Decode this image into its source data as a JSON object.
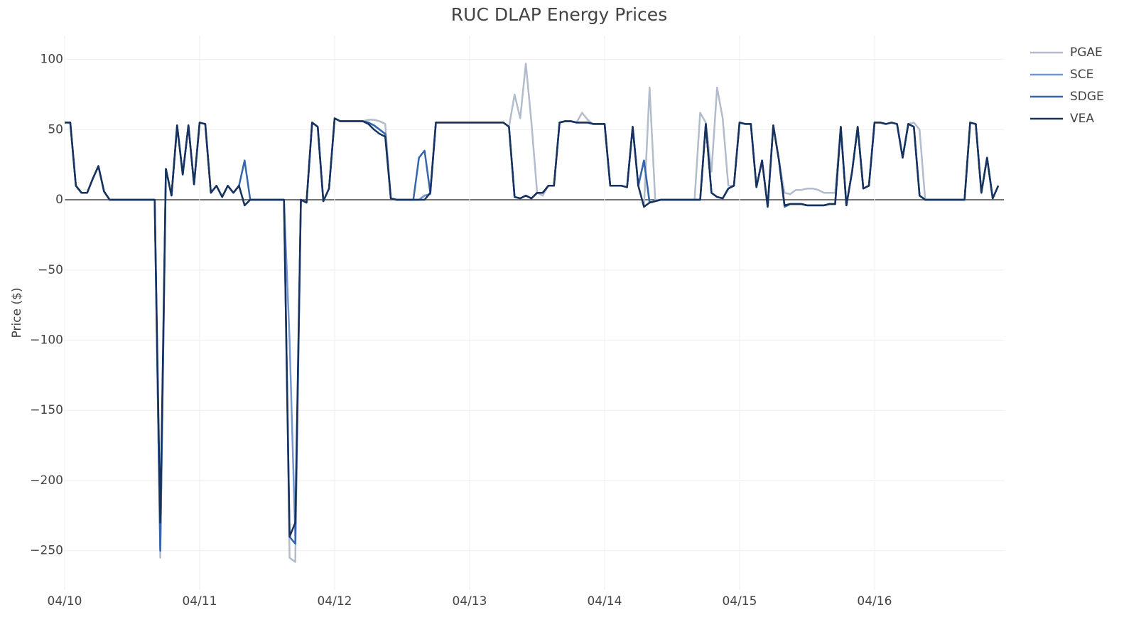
{
  "chart_data": {
    "type": "line",
    "title": "RUC DLAP Energy Prices",
    "ylabel": "Price ($)",
    "x": [
      0,
      1,
      2,
      3,
      4,
      5,
      6,
      7,
      8,
      9,
      10,
      11,
      12,
      13,
      14,
      15,
      16,
      17,
      18,
      19,
      20,
      21,
      22,
      23,
      24,
      25,
      26,
      27,
      28,
      29,
      30,
      31,
      32,
      33,
      34,
      35,
      36,
      37,
      38,
      39,
      40,
      41,
      42,
      43,
      44,
      45,
      46,
      47,
      48,
      49,
      50,
      51,
      52,
      53,
      54,
      55,
      56,
      57,
      58,
      59,
      60,
      61,
      62,
      63,
      64,
      65,
      66,
      67,
      68,
      69,
      70,
      71,
      72,
      73,
      74,
      75,
      76,
      77,
      78,
      79,
      80,
      81,
      82,
      83,
      84,
      85,
      86,
      87,
      88,
      89,
      90,
      91,
      92,
      93,
      94,
      95,
      96,
      97,
      98,
      99,
      100,
      101,
      102,
      103,
      104,
      105,
      106,
      107,
      108,
      109,
      110,
      111,
      112,
      113,
      114,
      115,
      116,
      117,
      118,
      119,
      120,
      121,
      122,
      123,
      124,
      125,
      126,
      127,
      128,
      129,
      130,
      131,
      132,
      133,
      134,
      135,
      136,
      137,
      138,
      139,
      140,
      141,
      142,
      143,
      144,
      145,
      146,
      147,
      148,
      149,
      150,
      151,
      152,
      153,
      154,
      155,
      156,
      157,
      158,
      159,
      160,
      161,
      162,
      163,
      164,
      165,
      166
    ],
    "series": [
      {
        "name": "PGAE",
        "color": "#b3bccd",
        "values": [
          55,
          55,
          10,
          5,
          5,
          15,
          24,
          6,
          0,
          0,
          0,
          0,
          0,
          0,
          0,
          0,
          0,
          -255,
          22,
          3,
          53,
          18,
          53,
          11,
          55,
          54,
          5,
          10,
          2,
          10,
          5,
          10,
          -4,
          0,
          0,
          0,
          0,
          0,
          0,
          0,
          -255,
          -258,
          0,
          -2,
          55,
          52,
          -1,
          8,
          58,
          56,
          56,
          56,
          56,
          56,
          57,
          57,
          56,
          54,
          1,
          0,
          0,
          0,
          0,
          0,
          3,
          4,
          55,
          55,
          55,
          55,
          55,
          55,
          55,
          55,
          55,
          55,
          55,
          55,
          55,
          52,
          75,
          58,
          97,
          55,
          5,
          3,
          10,
          10,
          55,
          56,
          56,
          55,
          62,
          57,
          54,
          54,
          54,
          10,
          10,
          10,
          9,
          52,
          10,
          -5,
          80,
          0,
          0,
          0,
          0,
          0,
          0,
          0,
          0,
          62,
          55,
          20,
          80,
          58,
          10,
          10,
          55,
          54,
          54,
          9,
          28,
          -5,
          53,
          28,
          5,
          4,
          7,
          7,
          8,
          8,
          7,
          5,
          5,
          5,
          52,
          -4,
          20,
          52,
          8,
          10,
          55,
          55,
          54,
          55,
          54,
          30,
          54,
          55,
          50,
          0,
          0,
          0,
          0,
          0,
          0,
          0,
          0,
          55,
          54,
          5,
          30,
          1,
          10
        ]
      },
      {
        "name": "SCE",
        "color": "#7394d3",
        "values": [
          55,
          55,
          10,
          5,
          5,
          15,
          24,
          6,
          0,
          0,
          0,
          0,
          0,
          0,
          0,
          0,
          0,
          -248,
          22,
          3,
          53,
          18,
          53,
          11,
          55,
          54,
          5,
          10,
          2,
          10,
          5,
          10,
          -4,
          0,
          0,
          0,
          0,
          0,
          0,
          0,
          -100,
          -240,
          0,
          -2,
          55,
          52,
          -1,
          8,
          58,
          56,
          56,
          56,
          56,
          56,
          55,
          53,
          50,
          47,
          1,
          0,
          0,
          0,
          0,
          0,
          3,
          4,
          55,
          55,
          55,
          55,
          55,
          55,
          55,
          55,
          55,
          55,
          55,
          55,
          55,
          52,
          2,
          1,
          3,
          1,
          5,
          5,
          10,
          10,
          55,
          56,
          56,
          55,
          55,
          55,
          54,
          54,
          54,
          10,
          10,
          10,
          9,
          52,
          10,
          28,
          -2,
          -1,
          0,
          0,
          0,
          0,
          0,
          0,
          0,
          0,
          54,
          5,
          2,
          1,
          8,
          10,
          55,
          54,
          54,
          9,
          28,
          -5,
          53,
          28,
          -5,
          -3,
          -3,
          -3,
          -4,
          -4,
          -4,
          -4,
          -3,
          -3,
          52,
          -4,
          20,
          52,
          8,
          10,
          55,
          55,
          54,
          55,
          54,
          30,
          54,
          52,
          3,
          0,
          0,
          0,
          0,
          0,
          0,
          0,
          0,
          55,
          54,
          5,
          30,
          1,
          10
        ]
      },
      {
        "name": "SDGE",
        "color": "#3565ab",
        "values": [
          55,
          55,
          10,
          5,
          5,
          15,
          24,
          6,
          0,
          0,
          0,
          0,
          0,
          0,
          0,
          0,
          0,
          -250,
          22,
          3,
          53,
          18,
          53,
          11,
          55,
          54,
          5,
          10,
          2,
          10,
          5,
          10,
          28,
          0,
          0,
          0,
          0,
          0,
          0,
          0,
          -240,
          -245,
          0,
          -2,
          55,
          52,
          -1,
          8,
          58,
          56,
          56,
          56,
          56,
          56,
          55,
          53,
          50,
          47,
          1,
          0,
          0,
          0,
          0,
          30,
          35,
          5,
          55,
          55,
          55,
          55,
          55,
          55,
          55,
          55,
          55,
          55,
          55,
          55,
          55,
          52,
          2,
          1,
          3,
          1,
          5,
          5,
          10,
          10,
          55,
          56,
          56,
          55,
          55,
          55,
          54,
          54,
          54,
          10,
          10,
          10,
          9,
          52,
          10,
          28,
          -2,
          -1,
          0,
          0,
          0,
          0,
          0,
          0,
          0,
          0,
          54,
          5,
          2,
          1,
          8,
          10,
          55,
          54,
          54,
          9,
          28,
          -5,
          53,
          28,
          -5,
          -3,
          -3,
          -3,
          -4,
          -4,
          -4,
          -4,
          -3,
          -3,
          52,
          -4,
          20,
          52,
          8,
          10,
          55,
          55,
          54,
          55,
          54,
          30,
          54,
          52,
          3,
          0,
          0,
          0,
          0,
          0,
          0,
          0,
          0,
          55,
          54,
          5,
          30,
          1,
          10
        ]
      },
      {
        "name": "VEA",
        "color": "#17325c",
        "values": [
          55,
          55,
          10,
          5,
          5,
          15,
          24,
          6,
          0,
          0,
          0,
          0,
          0,
          0,
          0,
          0,
          0,
          -230,
          22,
          3,
          53,
          18,
          53,
          11,
          55,
          54,
          5,
          10,
          2,
          10,
          5,
          10,
          -4,
          0,
          0,
          0,
          0,
          0,
          0,
          0,
          -240,
          -230,
          0,
          -2,
          55,
          52,
          -1,
          8,
          58,
          56,
          56,
          56,
          56,
          56,
          54,
          50,
          47,
          45,
          1,
          0,
          0,
          0,
          0,
          0,
          0,
          5,
          55,
          55,
          55,
          55,
          55,
          55,
          55,
          55,
          55,
          55,
          55,
          55,
          55,
          52,
          2,
          1,
          3,
          1,
          5,
          5,
          10,
          10,
          55,
          56,
          56,
          55,
          55,
          55,
          54,
          54,
          54,
          10,
          10,
          10,
          9,
          52,
          10,
          -5,
          -2,
          -1,
          0,
          0,
          0,
          0,
          0,
          0,
          0,
          0,
          54,
          5,
          2,
          1,
          8,
          10,
          55,
          54,
          54,
          9,
          28,
          -5,
          53,
          28,
          -4,
          -3,
          -3,
          -3,
          -4,
          -4,
          -4,
          -4,
          -3,
          -3,
          52,
          -4,
          20,
          52,
          8,
          10,
          55,
          55,
          54,
          55,
          54,
          30,
          54,
          52,
          3,
          0,
          0,
          0,
          0,
          0,
          0,
          0,
          0,
          55,
          54,
          5,
          30,
          1,
          10
        ]
      }
    ],
    "xlim": [
      0,
      167
    ],
    "xticks": [
      {
        "value": 0,
        "label": "04/10"
      },
      {
        "value": 24,
        "label": "04/11"
      },
      {
        "value": 48,
        "label": "04/12"
      },
      {
        "value": 72,
        "label": "04/13"
      },
      {
        "value": 96,
        "label": "04/14"
      },
      {
        "value": 120,
        "label": "04/15"
      },
      {
        "value": 144,
        "label": "04/16"
      }
    ],
    "ylim": [
      -278,
      117
    ],
    "yticks": [
      {
        "value": -250,
        "label": "−250"
      },
      {
        "value": -200,
        "label": "−200"
      },
      {
        "value": -150,
        "label": "−150"
      },
      {
        "value": -100,
        "label": "−100"
      },
      {
        "value": -50,
        "label": "−50"
      },
      0,
      50,
      100
    ],
    "grid": true,
    "legend": "right"
  }
}
